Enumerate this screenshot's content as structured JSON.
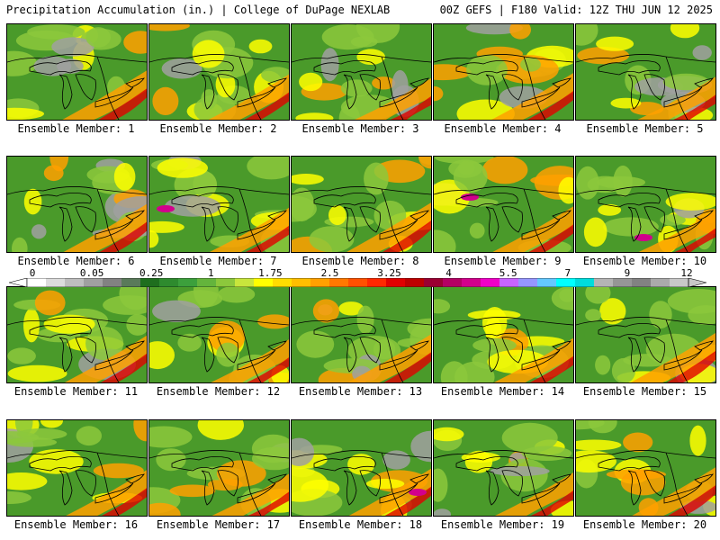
{
  "header": {
    "title_left": "Precipitation Accumulation (in.) | College of DuPage NEXLAB",
    "title_right": "00Z GEFS | F180 Valid: 12Z THU JUN 12 2025"
  },
  "panels": [
    {
      "label": "Ensemble Member: 1"
    },
    {
      "label": "Ensemble Member: 2"
    },
    {
      "label": "Ensemble Member: 3"
    },
    {
      "label": "Ensemble Member: 4"
    },
    {
      "label": "Ensemble Member: 5"
    },
    {
      "label": "Ensemble Member: 6"
    },
    {
      "label": "Ensemble Member: 7"
    },
    {
      "label": "Ensemble Member: 8"
    },
    {
      "label": "Ensemble Member: 9"
    },
    {
      "label": "Ensemble Member: 10"
    },
    {
      "label": "Ensemble Member: 11"
    },
    {
      "label": "Ensemble Member: 12"
    },
    {
      "label": "Ensemble Member: 13"
    },
    {
      "label": "Ensemble Member: 14"
    },
    {
      "label": "Ensemble Member: 15"
    },
    {
      "label": "Ensemble Member: 16"
    },
    {
      "label": "Ensemble Member: 17"
    },
    {
      "label": "Ensemble Member: 18"
    },
    {
      "label": "Ensemble Member: 19"
    },
    {
      "label": "Ensemble Member: 20"
    }
  ],
  "colorbar": {
    "tick_labels": [
      "0",
      "0.05",
      "0.25",
      "1",
      "1.75",
      "2.5",
      "3.25",
      "4",
      "5.5",
      "7",
      "9",
      "12"
    ],
    "colors": [
      "#ffffff",
      "#dcdcdc",
      "#bebebe",
      "#a0a0a0",
      "#828282",
      "#5a7a5a",
      "#1e6e1e",
      "#2e8b2e",
      "#3ca03c",
      "#64b43c",
      "#8cc83c",
      "#c8e63c",
      "#ffff00",
      "#ffdc00",
      "#ffbe00",
      "#ffa000",
      "#ff7800",
      "#ff5000",
      "#ff2800",
      "#e10000",
      "#be0000",
      "#9b0032",
      "#b40064",
      "#d2008c",
      "#f000c8",
      "#c864ff",
      "#9696ff",
      "#64c8ff",
      "#00ffff",
      "#00dcdc",
      "#b4b4b4",
      "#969696",
      "#828282",
      "#aaaaaa",
      "#c8c8c8"
    ]
  },
  "colors": {
    "base_green": "#4a9a2a",
    "light_green": "#8cc83c",
    "yellow": "#ffff00",
    "orange": "#ffa000",
    "red": "#e10000",
    "magenta": "#d2008c",
    "gray": "#a0a0a0"
  }
}
